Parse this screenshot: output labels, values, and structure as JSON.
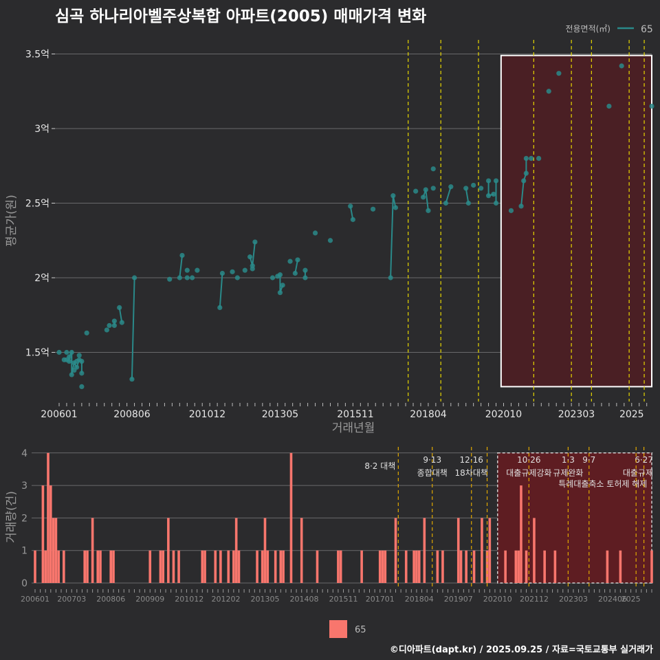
{
  "title": "심곡 하나리아벨주상복합 아파트(2005) 매매가격 변화",
  "footer": "©디아파트(dapt.kr) / 2025.09.25 / 자료=국토교통부 실거래가",
  "colors": {
    "background": "#2b2b2d",
    "series": "#2a8a8a",
    "bars": "#f8766d",
    "policy_line": "#e8d800",
    "policy_line_bottom": "#e0a800",
    "highlight_fill": "#4a1f24",
    "highlight_fill_bottom": "#5e1d22"
  },
  "chart_data": [
    {
      "type": "line",
      "ylabel": "평균가(원)",
      "xlabel": "거래년월",
      "y_ticks": [
        {
          "value": 1.5,
          "label": "1.5억"
        },
        {
          "value": 2.0,
          "label": "2억"
        },
        {
          "value": 2.5,
          "label": "2.5억"
        },
        {
          "value": 3.0,
          "label": "3억"
        },
        {
          "value": 3.5,
          "label": "3.5억"
        }
      ],
      "ylim": [
        1.18,
        3.6
      ],
      "x_ticks": [
        "200601",
        "200806",
        "201012",
        "201305",
        "201511",
        "201804",
        "202010",
        "202303",
        "2025"
      ],
      "legend": {
        "title": "전용면적(㎡)",
        "entries": [
          "65"
        ],
        "position": "top-right"
      },
      "policy_lines": [
        "2017-08",
        "2018-09",
        "2019-12",
        "2021-10",
        "2023-01",
        "2023-09",
        "2025-06"
      ],
      "policy_lines_top_extra": [
        "2021-10",
        "2025-06"
      ],
      "highlight_range": {
        "x0": "2020-09",
        "x1": "2025-09",
        "y0": 1.27,
        "y1": 3.49
      },
      "series": [
        {
          "name": "65",
          "points": [
            [
              "2006-01",
              1.5
            ],
            [
              "2006-03",
              1.45
            ],
            [
              "2006-04",
              1.5
            ],
            [
              "2006-04",
              1.45
            ],
            [
              "2006-05",
              1.47
            ],
            [
              "2006-05",
              1.44
            ],
            [
              "2006-06",
              1.5
            ],
            [
              "2006-06",
              1.35
            ],
            [
              "2006-07",
              1.43
            ],
            [
              "2006-07",
              1.38
            ],
            [
              "2006-08",
              1.4
            ],
            [
              "2006-08",
              1.44
            ],
            [
              "2006-09",
              1.48
            ],
            [
              "2006-09",
              1.45
            ],
            [
              "2006-10",
              1.44
            ],
            [
              "2006-10",
              1.36
            ],
            [
              "2006-10",
              1.27
            ],
            [
              "2006-12",
              1.63
            ],
            [
              "2007-08",
              1.65
            ],
            [
              "2007-09",
              1.68
            ],
            [
              "2007-11",
              1.71
            ],
            [
              "2007-11",
              1.68
            ],
            [
              "2008-01",
              1.8
            ],
            [
              "2008-02",
              1.7
            ],
            [
              "2008-06",
              1.32
            ],
            [
              "2008-07",
              2.0
            ],
            [
              "2009-09",
              1.99
            ],
            [
              "2010-01",
              2.0
            ],
            [
              "2010-02",
              2.15
            ],
            [
              "2010-04",
              2.05
            ],
            [
              "2010-04",
              2.0
            ],
            [
              "2010-06",
              2.0
            ],
            [
              "2010-08",
              2.05
            ],
            [
              "2011-05",
              1.8
            ],
            [
              "2011-06",
              2.03
            ],
            [
              "2011-10",
              2.04
            ],
            [
              "2011-12",
              2.0
            ],
            [
              "2012-03",
              2.05
            ],
            [
              "2012-05",
              2.14
            ],
            [
              "2012-06",
              2.08
            ],
            [
              "2012-06",
              2.06
            ],
            [
              "2012-07",
              2.24
            ],
            [
              "2013-02",
              2.0
            ],
            [
              "2013-04",
              2.01
            ],
            [
              "2013-05",
              2.02
            ],
            [
              "2013-05",
              1.9
            ],
            [
              "2013-06",
              1.95
            ],
            [
              "2013-09",
              2.11
            ],
            [
              "2013-11",
              2.03
            ],
            [
              "2013-12",
              2.12
            ],
            [
              "2014-03",
              2.05
            ],
            [
              "2014-03",
              2.0
            ],
            [
              "2014-07",
              2.3
            ],
            [
              "2015-01",
              2.25
            ],
            [
              "2015-09",
              2.48
            ],
            [
              "2015-10",
              2.39
            ],
            [
              "2016-06",
              2.46
            ],
            [
              "2017-01",
              2.0
            ],
            [
              "2017-02",
              2.55
            ],
            [
              "2017-03",
              2.47
            ],
            [
              "2017-11",
              2.58
            ],
            [
              "2018-02",
              2.54
            ],
            [
              "2018-03",
              2.59
            ],
            [
              "2018-04",
              2.45
            ],
            [
              "2018-06",
              2.6
            ],
            [
              "2018-06",
              2.73
            ],
            [
              "2018-11",
              2.5
            ],
            [
              "2019-01",
              2.61
            ],
            [
              "2019-07",
              2.6
            ],
            [
              "2019-08",
              2.5
            ],
            [
              "2019-10",
              2.62
            ],
            [
              "2020-01",
              2.6
            ],
            [
              "2020-04",
              2.65
            ],
            [
              "2020-04",
              2.55
            ],
            [
              "2020-06",
              2.56
            ],
            [
              "2020-07",
              2.5
            ],
            [
              "2020-07",
              2.65
            ],
            [
              "2021-01",
              2.45
            ],
            [
              "2021-05",
              2.48
            ],
            [
              "2021-06",
              2.65
            ],
            [
              "2021-07",
              2.7
            ],
            [
              "2021-07",
              2.8
            ],
            [
              "2021-09",
              2.8
            ],
            [
              "2021-12",
              2.8
            ],
            [
              "2022-04",
              3.25
            ],
            [
              "2022-08",
              3.37
            ],
            [
              "2024-04",
              3.15
            ],
            [
              "2024-09",
              3.42
            ],
            [
              "2025-09",
              3.15
            ]
          ],
          "line_segments": [
            [
              [
                "2006-04",
                1.45
              ],
              [
                "2006-05",
                1.44
              ],
              [
                "2006-05",
                1.47
              ],
              [
                "2006-06",
                1.5
              ],
              [
                "2006-06",
                1.35
              ],
              [
                "2006-07",
                1.43
              ],
              [
                "2006-08",
                1.4
              ],
              [
                "2006-09",
                1.45
              ],
              [
                "2006-10",
                1.44
              ],
              [
                "2006-10",
                1.36
              ]
            ],
            [
              [
                "2007-11",
                1.71
              ],
              [
                "2007-11",
                1.68
              ]
            ],
            [
              [
                "2008-01",
                1.8
              ],
              [
                "2008-02",
                1.7
              ]
            ],
            [
              [
                "2008-06",
                1.32
              ],
              [
                "2008-07",
                2.0
              ]
            ],
            [
              [
                "2010-01",
                2.0
              ],
              [
                "2010-02",
                2.15
              ]
            ],
            [
              [
                "2011-05",
                1.8
              ],
              [
                "2011-06",
                2.03
              ]
            ],
            [
              [
                "2012-05",
                2.14
              ],
              [
                "2012-06",
                2.08
              ],
              [
                "2012-07",
                2.24
              ]
            ],
            [
              [
                "2013-04",
                2.01
              ],
              [
                "2013-05",
                2.02
              ],
              [
                "2013-05",
                1.9
              ],
              [
                "2013-06",
                1.95
              ]
            ],
            [
              [
                "2013-11",
                2.03
              ],
              [
                "2013-12",
                2.12
              ]
            ],
            [
              [
                "2014-03",
                2.05
              ],
              [
                "2014-03",
                2.0
              ]
            ],
            [
              [
                "2015-09",
                2.48
              ],
              [
                "2015-10",
                2.39
              ]
            ],
            [
              [
                "2017-01",
                2.0
              ],
              [
                "2017-02",
                2.55
              ],
              [
                "2017-03",
                2.47
              ]
            ],
            [
              [
                "2018-02",
                2.54
              ],
              [
                "2018-03",
                2.59
              ],
              [
                "2018-04",
                2.45
              ]
            ],
            [
              [
                "2018-11",
                2.5
              ],
              [
                "2019-01",
                2.61
              ]
            ],
            [
              [
                "2019-07",
                2.6
              ],
              [
                "2019-08",
                2.5
              ]
            ],
            [
              [
                "2020-04",
                2.65
              ],
              [
                "2020-04",
                2.55
              ],
              [
                "2020-06",
                2.56
              ]
            ],
            [
              [
                "2020-07",
                2.5
              ],
              [
                "2020-07",
                2.65
              ]
            ],
            [
              [
                "2021-05",
                2.48
              ],
              [
                "2021-06",
                2.65
              ],
              [
                "2021-07",
                2.7
              ],
              [
                "2021-07",
                2.8
              ]
            ]
          ]
        }
      ]
    },
    {
      "type": "bar",
      "ylabel": "거래량(건)",
      "y_ticks": [
        0,
        1,
        2,
        3,
        4
      ],
      "ylim": [
        0,
        4.2
      ],
      "x_ticks": [
        "200601",
        "200703",
        "200806",
        "200909",
        "201012",
        "201202",
        "201305",
        "201408",
        "201511",
        "201701",
        "201804",
        "201907",
        "202010",
        "202112",
        "202303",
        "202406",
        "2025"
      ],
      "legend": {
        "entries": [
          "65"
        ],
        "position": "bottom"
      },
      "highlight_range": {
        "x0": "2020-10",
        "x1": "2025-09",
        "y0": 0,
        "y1": 4
      },
      "policy_lines": [
        {
          "x": "2017-08",
          "date": "8·2 대책",
          "desc": ""
        },
        {
          "x": "2018-09",
          "date": "9·13",
          "desc": "종합대책"
        },
        {
          "x": "2019-12",
          "date": "12·16",
          "desc": "18차대책"
        },
        {
          "x": "2020-06",
          "date": "",
          "desc": ""
        },
        {
          "x": "2021-10",
          "date": "10·26",
          "desc": "대출규제강화"
        },
        {
          "x": "2023-01",
          "date": "1·3",
          "desc": "규제완화"
        },
        {
          "x": "2023-09",
          "date": "9·7",
          "desc": "특례대출축소 토허제 해제"
        },
        {
          "x": "2025-06",
          "date": "6·27",
          "desc": "대출규제"
        },
        {
          "x": "2025-03",
          "date": "",
          "desc": ""
        }
      ],
      "series": [
        {
          "name": "65",
          "values": [
            [
              "2006-01",
              1
            ],
            [
              "2006-04",
              3
            ],
            [
              "2006-05",
              1
            ],
            [
              "2006-06",
              4
            ],
            [
              "2006-07",
              3
            ],
            [
              "2006-08",
              2
            ],
            [
              "2006-09",
              2
            ],
            [
              "2006-10",
              1
            ],
            [
              "2006-12",
              1
            ],
            [
              "2007-08",
              1
            ],
            [
              "2007-09",
              1
            ],
            [
              "2007-11",
              2
            ],
            [
              "2008-01",
              1
            ],
            [
              "2008-02",
              1
            ],
            [
              "2008-06",
              1
            ],
            [
              "2008-07",
              1
            ],
            [
              "2009-09",
              1
            ],
            [
              "2010-01",
              1
            ],
            [
              "2010-02",
              1
            ],
            [
              "2010-04",
              2
            ],
            [
              "2010-06",
              1
            ],
            [
              "2010-08",
              1
            ],
            [
              "2011-05",
              1
            ],
            [
              "2011-06",
              1
            ],
            [
              "2011-10",
              1
            ],
            [
              "2011-12",
              1
            ],
            [
              "2012-03",
              1
            ],
            [
              "2012-05",
              1
            ],
            [
              "2012-06",
              2
            ],
            [
              "2012-07",
              1
            ],
            [
              "2013-02",
              1
            ],
            [
              "2013-04",
              1
            ],
            [
              "2013-05",
              2
            ],
            [
              "2013-06",
              1
            ],
            [
              "2013-09",
              1
            ],
            [
              "2013-11",
              1
            ],
            [
              "2013-12",
              1
            ],
            [
              "2014-03",
              4
            ],
            [
              "2014-07",
              2
            ],
            [
              "2015-01",
              1
            ],
            [
              "2015-09",
              1
            ],
            [
              "2015-10",
              1
            ],
            [
              "2016-06",
              1
            ],
            [
              "2017-01",
              1
            ],
            [
              "2017-02",
              1
            ],
            [
              "2017-03",
              1
            ],
            [
              "2017-07",
              2
            ],
            [
              "2017-11",
              1
            ],
            [
              "2018-02",
              1
            ],
            [
              "2018-03",
              1
            ],
            [
              "2018-04",
              1
            ],
            [
              "2018-06",
              2
            ],
            [
              "2018-11",
              1
            ],
            [
              "2019-01",
              1
            ],
            [
              "2019-07",
              2
            ],
            [
              "2019-08",
              1
            ],
            [
              "2019-10",
              1
            ],
            [
              "2020-01",
              1
            ],
            [
              "2020-04",
              2
            ],
            [
              "2020-06",
              1
            ],
            [
              "2020-07",
              2
            ],
            [
              "2021-01",
              1
            ],
            [
              "2021-05",
              1
            ],
            [
              "2021-06",
              1
            ],
            [
              "2021-07",
              3
            ],
            [
              "2021-09",
              1
            ],
            [
              "2021-12",
              2
            ],
            [
              "2022-04",
              1
            ],
            [
              "2022-08",
              1
            ],
            [
              "2024-04",
              1
            ],
            [
              "2024-09",
              1
            ],
            [
              "2025-09",
              1
            ]
          ]
        }
      ]
    }
  ]
}
